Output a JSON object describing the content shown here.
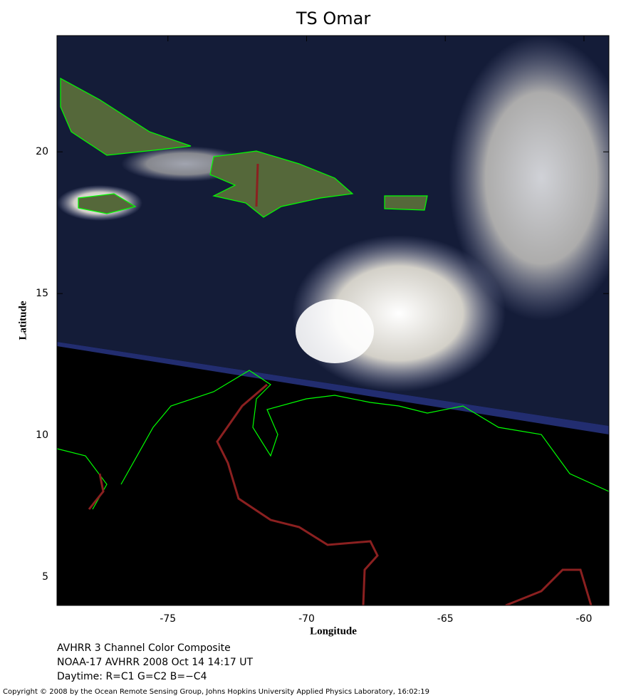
{
  "map": {
    "title": "TS Omar",
    "xlabel": "Longitude",
    "ylabel": "Latitude",
    "xlim": [
      -79,
      -59.1
    ],
    "ylim": [
      4,
      24.1
    ],
    "xticks": [
      -75,
      -70,
      -65,
      -60
    ],
    "yticks": [
      5,
      10,
      15,
      20
    ],
    "caption": [
      "AVHRR 3 Channel Color Composite",
      "NOAA-17 AVHRR 2008 Oct 14 14:17 UT",
      "Daytime: R=C1 G=C2 B=−C4"
    ],
    "copyright": "Copyright © 2008 by the Ocean Remote Sensing Group, Johns Hopkins University Applied Physics Laboratory, 16:02:19"
  }
}
